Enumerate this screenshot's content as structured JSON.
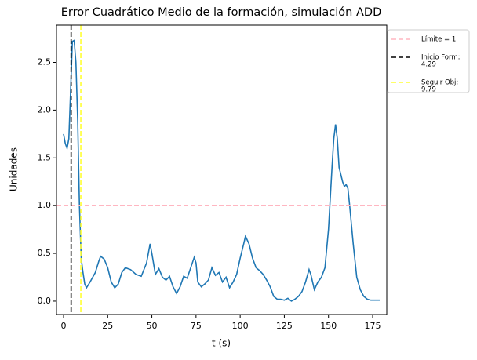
{
  "chart_data": {
    "type": "line",
    "title": "Error Cuadrático Medio de la formación, simulación ADD",
    "x_label": "t (s)",
    "y_label": "Unidades",
    "xlim": [
      -4,
      183
    ],
    "ylim": [
      -0.14,
      2.89
    ],
    "xticks": [
      0,
      25,
      50,
      75,
      100,
      125,
      150,
      175
    ],
    "yticks": [
      {
        "value": 0,
        "label": "0.0"
      },
      {
        "value": 0.5,
        "label": "0.5"
      },
      {
        "value": 1,
        "label": "1.0"
      },
      {
        "value": 1.5,
        "label": "1.5"
      },
      {
        "value": 2,
        "label": "2.0"
      },
      {
        "value": 2.5,
        "label": "2.5"
      }
    ],
    "x": [
      0,
      1,
      2,
      3,
      4,
      5,
      6,
      7,
      8,
      9,
      10,
      11,
      12,
      13,
      15,
      18,
      20,
      21,
      23,
      25,
      27,
      29,
      31,
      33,
      35,
      38,
      41,
      44,
      47,
      49,
      50,
      52,
      54,
      56,
      58,
      60,
      62,
      64,
      66,
      68,
      70,
      72,
      74,
      75,
      76,
      78,
      80,
      82,
      84,
      86,
      88,
      90,
      92,
      94,
      96,
      98,
      100,
      102,
      103,
      105,
      107,
      109,
      111,
      113,
      115,
      117,
      119,
      121,
      123,
      125,
      127,
      129,
      131,
      133,
      135,
      137,
      139,
      140,
      142,
      144,
      146,
      148,
      150,
      152,
      153,
      154,
      155,
      156,
      158,
      159,
      160,
      161,
      162,
      164,
      166,
      168,
      170,
      172,
      174,
      176,
      179
    ],
    "series": [
      {
        "color": "#1f77b4",
        "values": [
          1.75,
          1.65,
          1.6,
          1.7,
          2.2,
          2.72,
          2.73,
          2.5,
          1.9,
          1.0,
          0.45,
          0.3,
          0.18,
          0.14,
          0.2,
          0.3,
          0.42,
          0.47,
          0.44,
          0.35,
          0.2,
          0.14,
          0.18,
          0.3,
          0.35,
          0.33,
          0.28,
          0.26,
          0.4,
          0.6,
          0.5,
          0.28,
          0.34,
          0.25,
          0.22,
          0.26,
          0.15,
          0.08,
          0.15,
          0.26,
          0.24,
          0.35,
          0.46,
          0.4,
          0.2,
          0.15,
          0.18,
          0.22,
          0.35,
          0.27,
          0.3,
          0.2,
          0.25,
          0.14,
          0.2,
          0.28,
          0.45,
          0.6,
          0.68,
          0.6,
          0.45,
          0.35,
          0.32,
          0.28,
          0.22,
          0.15,
          0.05,
          0.02,
          0.02,
          0.01,
          0.03,
          0.0,
          0.02,
          0.05,
          0.1,
          0.2,
          0.33,
          0.28,
          0.12,
          0.2,
          0.25,
          0.35,
          0.75,
          1.4,
          1.7,
          1.85,
          1.7,
          1.4,
          1.25,
          1.2,
          1.22,
          1.18,
          1.0,
          0.6,
          0.25,
          0.12,
          0.05,
          0.02,
          0.01,
          0.01,
          0.01
        ]
      }
    ],
    "reference_lines": [
      {
        "name": [
          "Límite = 1"
        ],
        "axis": "y",
        "value": 1,
        "color": "#ffb6c1"
      },
      {
        "name": [
          "Inicio Form:",
          "4.29"
        ],
        "axis": "x",
        "value": 4.29,
        "color": "#000000"
      },
      {
        "name": [
          "Seguir Obj:",
          "9.79"
        ],
        "axis": "x",
        "value": 9.79,
        "color": "#ffff33"
      }
    ]
  }
}
